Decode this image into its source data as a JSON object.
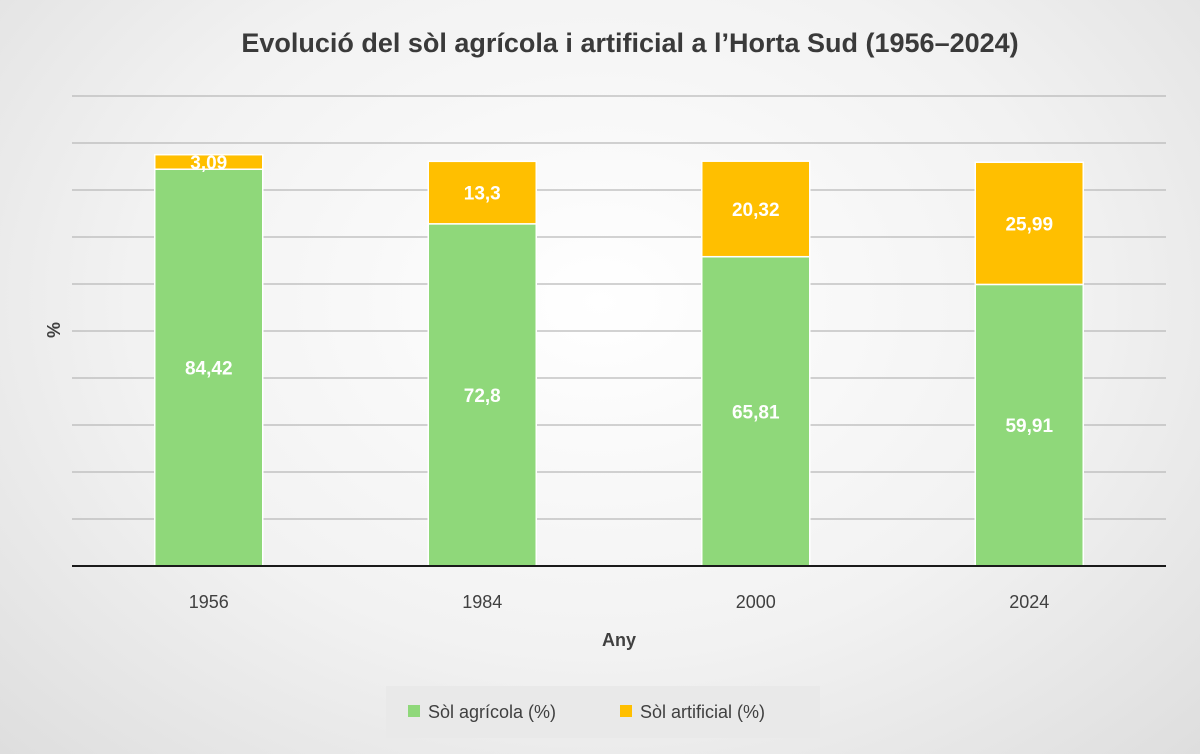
{
  "chart_data": {
    "type": "bar",
    "stacked": true,
    "title": "Evolució del sòl agrícola i artificial a l’Horta Sud (1956–2024)",
    "xlabel": "Any",
    "ylabel": "%",
    "categories": [
      "1956",
      "1984",
      "2000",
      "2024"
    ],
    "series": [
      {
        "name": "Sòl agrícola (%)",
        "values": [
          84.42,
          72.8,
          65.81,
          59.91
        ],
        "labels": [
          "84,42",
          "72,8",
          "65,81",
          "59,91"
        ],
        "color": "#8fd87a"
      },
      {
        "name": "Sòl artificial (%)",
        "values": [
          3.09,
          13.3,
          20.32,
          25.99
        ],
        "labels": [
          "3,09",
          "13,3",
          "20,32",
          "25,99"
        ],
        "color": "#ffbf00"
      }
    ],
    "ylim": [
      0,
      100
    ],
    "grid": true,
    "legend_position": "bottom",
    "tick_labels_y_visible": false
  }
}
